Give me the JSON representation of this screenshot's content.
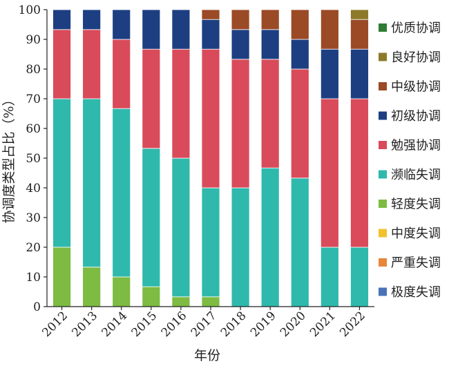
{
  "chart_data": {
    "type": "bar",
    "stacked": true,
    "title": "",
    "xlabel": "年份",
    "ylabel": "协调度类型占比（%）",
    "ylim": [
      0,
      100
    ],
    "yticks": [
      0,
      10,
      20,
      30,
      40,
      50,
      60,
      70,
      80,
      90,
      100
    ],
    "grid": false,
    "legend_position": "right",
    "categories": [
      "2012",
      "2013",
      "2014",
      "2015",
      "2016",
      "2017",
      "2018",
      "2019",
      "2020",
      "2021",
      "2022"
    ],
    "series": [
      {
        "name": "极度失调",
        "color": "#4a72b8",
        "values": [
          0,
          0,
          0,
          0,
          0,
          0,
          0,
          0,
          0,
          0,
          0
        ]
      },
      {
        "name": "严重失调",
        "color": "#e8863a",
        "values": [
          0,
          0,
          0,
          0,
          0,
          0,
          0,
          0,
          0,
          0,
          0
        ]
      },
      {
        "name": "中度失调",
        "color": "#f2c12e",
        "values": [
          0,
          0,
          0,
          0,
          0,
          0,
          0,
          0,
          0,
          0,
          0
        ]
      },
      {
        "name": "轻度失调",
        "color": "#7dbb42",
        "values": [
          20,
          13.3,
          10,
          6.7,
          3.3,
          3.3,
          0,
          0,
          0,
          0,
          0
        ]
      },
      {
        "name": "濒临失调",
        "color": "#2fb9ad",
        "values": [
          50,
          56.7,
          56.7,
          46.6,
          46.7,
          36.7,
          40,
          46.7,
          43.3,
          20,
          20
        ]
      },
      {
        "name": "勉强协调",
        "color": "#d94b5a",
        "values": [
          23.3,
          23.3,
          23.3,
          33.4,
          36.7,
          46.7,
          43.3,
          36.6,
          36.7,
          50,
          50
        ]
      },
      {
        "name": "初级协调",
        "color": "#1d3f82",
        "values": [
          6.7,
          6.7,
          10,
          13.3,
          13.3,
          10,
          10,
          10,
          10,
          16.7,
          16.7
        ]
      },
      {
        "name": "中级协调",
        "color": "#9b4a26",
        "values": [
          0,
          0,
          0,
          0,
          0,
          3.3,
          6.7,
          6.7,
          10,
          13.3,
          10
        ]
      },
      {
        "name": "良好协调",
        "color": "#8c7a2a",
        "values": [
          0,
          0,
          0,
          0,
          0,
          0,
          0,
          0,
          0,
          0,
          3.3
        ]
      },
      {
        "name": "优质协调",
        "color": "#2e7d32",
        "values": [
          0,
          0,
          0,
          0,
          0,
          0,
          0,
          0,
          0,
          0,
          0
        ]
      }
    ],
    "legend_order": [
      "优质协调",
      "良好协调",
      "中级协调",
      "初级协调",
      "勉强协调",
      "濒临失调",
      "轻度失调",
      "中度失调",
      "严重失调",
      "极度失调"
    ]
  }
}
